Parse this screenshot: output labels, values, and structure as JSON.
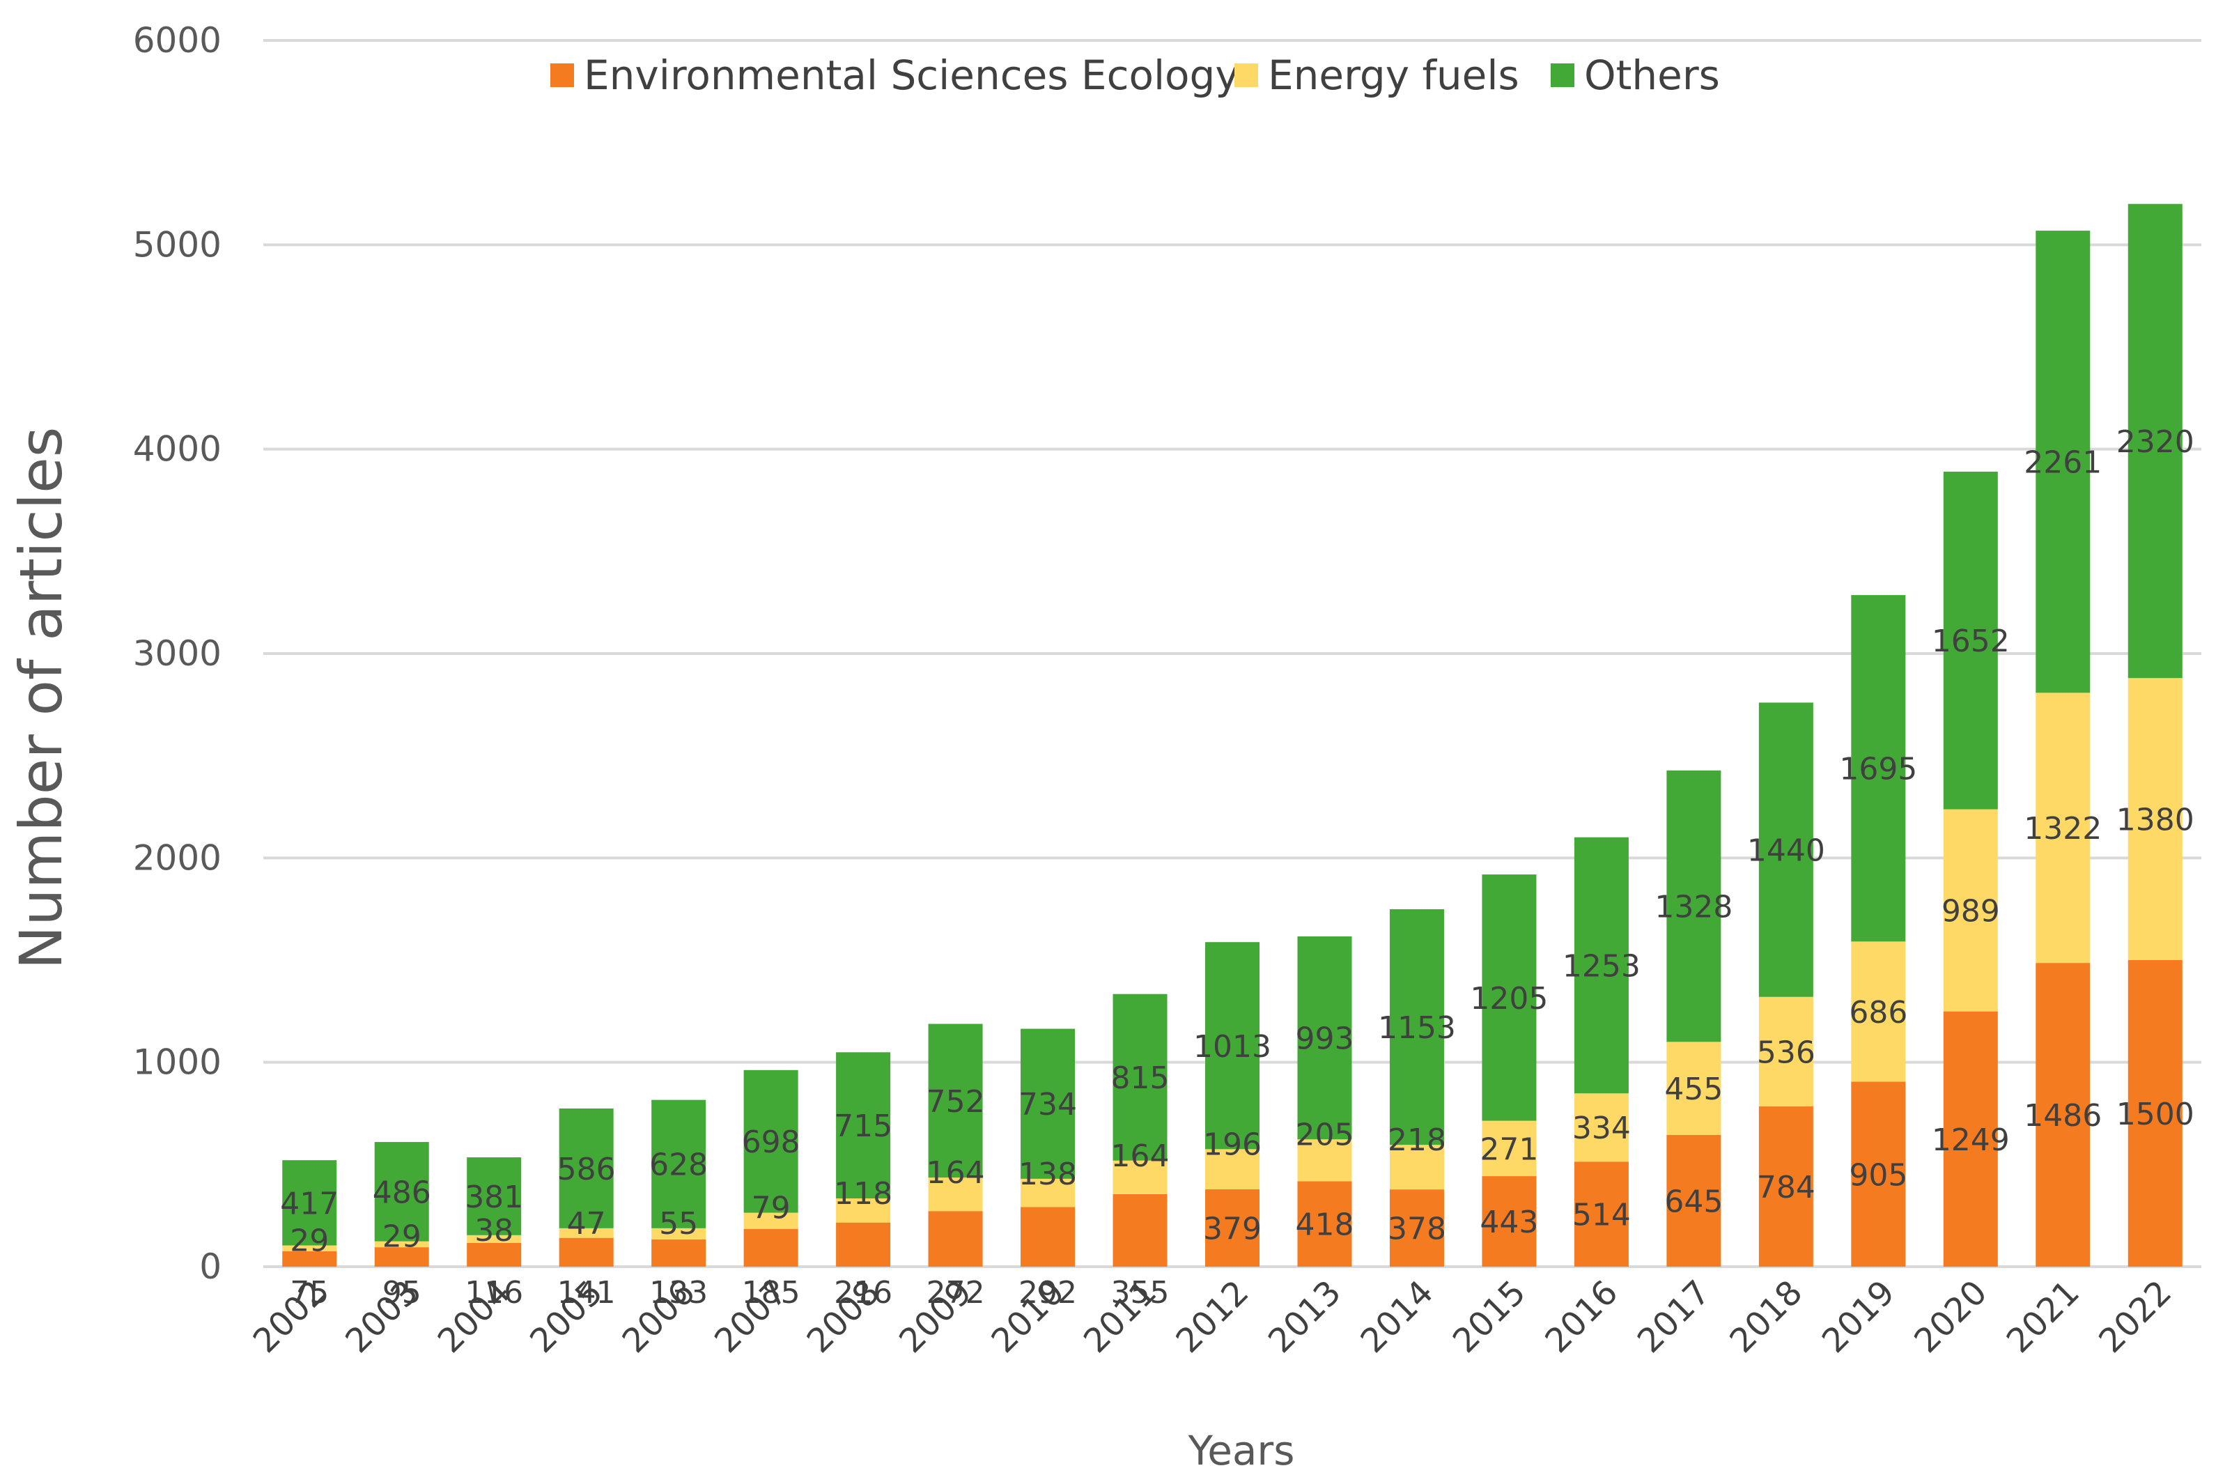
{
  "chart_data": {
    "type": "bar",
    "stacked": true,
    "title": "",
    "xlabel": "Years",
    "ylabel": "Number of articles",
    "ylim": [
      0,
      6000
    ],
    "yticks": [
      0,
      1000,
      2000,
      3000,
      4000,
      5000,
      6000
    ],
    "grid": true,
    "legend_position": "top",
    "categories": [
      "2002",
      "2003",
      "2004",
      "2005",
      "2006",
      "2007",
      "2008",
      "2009",
      "2010",
      "2011",
      "2012",
      "2013",
      "2014",
      "2015",
      "2016",
      "2017",
      "2018",
      "2019",
      "2020",
      "2021",
      "2022"
    ],
    "series": [
      {
        "name": "Environmental Sciences Ecology",
        "color": "#f47b20",
        "values": [
          75,
          95,
          116,
          141,
          133,
          185,
          216,
          272,
          292,
          355,
          379,
          418,
          378,
          443,
          514,
          645,
          784,
          905,
          1249,
          1486,
          1500
        ]
      },
      {
        "name": "Energy fuels",
        "color": "#ffd966",
        "values": [
          29,
          29,
          38,
          47,
          55,
          79,
          118,
          164,
          138,
          164,
          196,
          205,
          218,
          271,
          334,
          455,
          536,
          686,
          989,
          1322,
          1380
        ]
      },
      {
        "name": "Others",
        "color": "#43a936",
        "values": [
          417,
          486,
          381,
          586,
          628,
          698,
          715,
          752,
          734,
          815,
          1013,
          993,
          1153,
          1205,
          1253,
          1328,
          1440,
          1695,
          1652,
          2261,
          2320
        ]
      }
    ]
  }
}
